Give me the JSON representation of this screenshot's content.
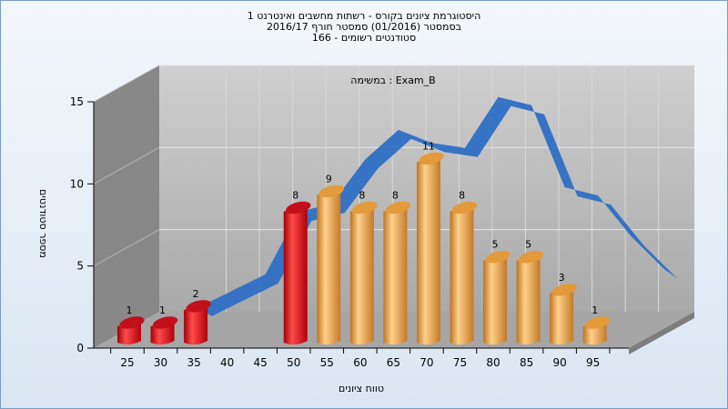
{
  "chart_data": {
    "type": "bar",
    "title_lines": [
      "היסטוגרמת ציונים בקורס - רשתות מחשבים ואינטרנט 1",
      "בסמסטר  (01/2016)  סמסטר חורף 2016/17",
      "סטודנטים רשומים - 166"
    ],
    "subtitle": "במשימה : Exam_B",
    "xlabel": "טווח ציונים",
    "ylabel": "מספר סטודנטים",
    "categories": [
      "25",
      "30",
      "35",
      "40",
      "45",
      "50",
      "55",
      "60",
      "65",
      "70",
      "75",
      "80",
      "85",
      "90",
      "95"
    ],
    "bars": [
      {
        "x": "25",
        "value": 1,
        "color": "red"
      },
      {
        "x": "30",
        "value": 1,
        "color": "red"
      },
      {
        "x": "35",
        "value": 2,
        "color": "red"
      },
      {
        "x": "50",
        "value": 8,
        "color": "red"
      },
      {
        "x": "55",
        "value": 9,
        "color": "orange"
      },
      {
        "x": "60",
        "value": 8,
        "color": "orange"
      },
      {
        "x": "65",
        "value": 8,
        "color": "orange"
      },
      {
        "x": "70",
        "value": 11,
        "color": "orange"
      },
      {
        "x": "75",
        "value": 8,
        "color": "orange"
      },
      {
        "x": "80",
        "value": 5,
        "color": "orange"
      },
      {
        "x": "85",
        "value": 5,
        "color": "orange"
      },
      {
        "x": "90",
        "value": 3,
        "color": "orange"
      },
      {
        "x": "95",
        "value": 1,
        "color": "orange"
      }
    ],
    "curve": [
      {
        "x": 30,
        "y": 0.5
      },
      {
        "x": 35,
        "y": 1.5
      },
      {
        "x": 40,
        "y": 2.5
      },
      {
        "x": 45,
        "y": 6.3
      },
      {
        "x": 50,
        "y": 6.8
      },
      {
        "x": 55,
        "y": 9.5
      },
      {
        "x": 60,
        "y": 11.3
      },
      {
        "x": 65,
        "y": 10.5
      },
      {
        "x": 70,
        "y": 10.2
      },
      {
        "x": 75,
        "y": 13.3
      },
      {
        "x": 80,
        "y": 12.8
      },
      {
        "x": 85,
        "y": 7.8
      },
      {
        "x": 90,
        "y": 7.3
      },
      {
        "x": 95,
        "y": 4.8
      },
      {
        "x": 100,
        "y": 2.8
      }
    ],
    "ylim": [
      0,
      15
    ],
    "yticks": [
      0,
      5,
      10,
      15
    ],
    "colors": {
      "red": "#e0141c",
      "orange": "#e8a040",
      "curve": "#2e6fc4"
    }
  }
}
